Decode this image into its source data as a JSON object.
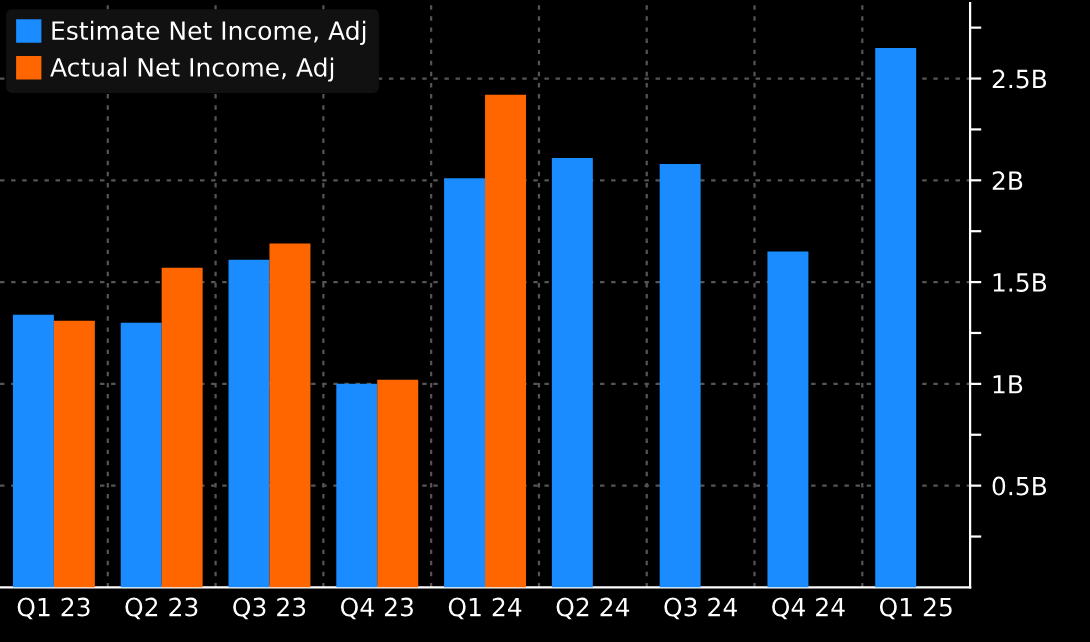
{
  "chart_data": {
    "type": "bar",
    "categories": [
      "Q1 23",
      "Q2 23",
      "Q3 23",
      "Q4 23",
      "Q1 24",
      "Q2 24",
      "Q3 24",
      "Q4 24",
      "Q1 25"
    ],
    "series": [
      {
        "name": "Estimate Net Income, Adj",
        "color": "#1a8cff",
        "values": [
          1.34,
          1.3,
          1.61,
          1.0,
          2.01,
          2.11,
          2.08,
          1.65,
          2.65
        ]
      },
      {
        "name": "Actual Net Income, Adj",
        "color": "#ff6600",
        "values": [
          1.31,
          1.57,
          1.69,
          1.02,
          2.42,
          null,
          null,
          null,
          null
        ]
      }
    ],
    "ylim": [
      0,
      2.87
    ],
    "yticks": [
      {
        "value": 0.25,
        "label": null
      },
      {
        "value": 0.5,
        "label": "0.5B"
      },
      {
        "value": 0.75,
        "label": null
      },
      {
        "value": 1,
        "label": "1B"
      },
      {
        "value": 1.25,
        "label": null
      },
      {
        "value": 1.5,
        "label": "1.5B"
      },
      {
        "value": 1.75,
        "label": null
      },
      {
        "value": 2,
        "label": "2B"
      },
      {
        "value": 2.25,
        "label": null
      },
      {
        "value": 2.5,
        "label": "2.5B"
      },
      {
        "value": 2.75,
        "label": null
      }
    ],
    "grid": true,
    "legend": "top left"
  }
}
